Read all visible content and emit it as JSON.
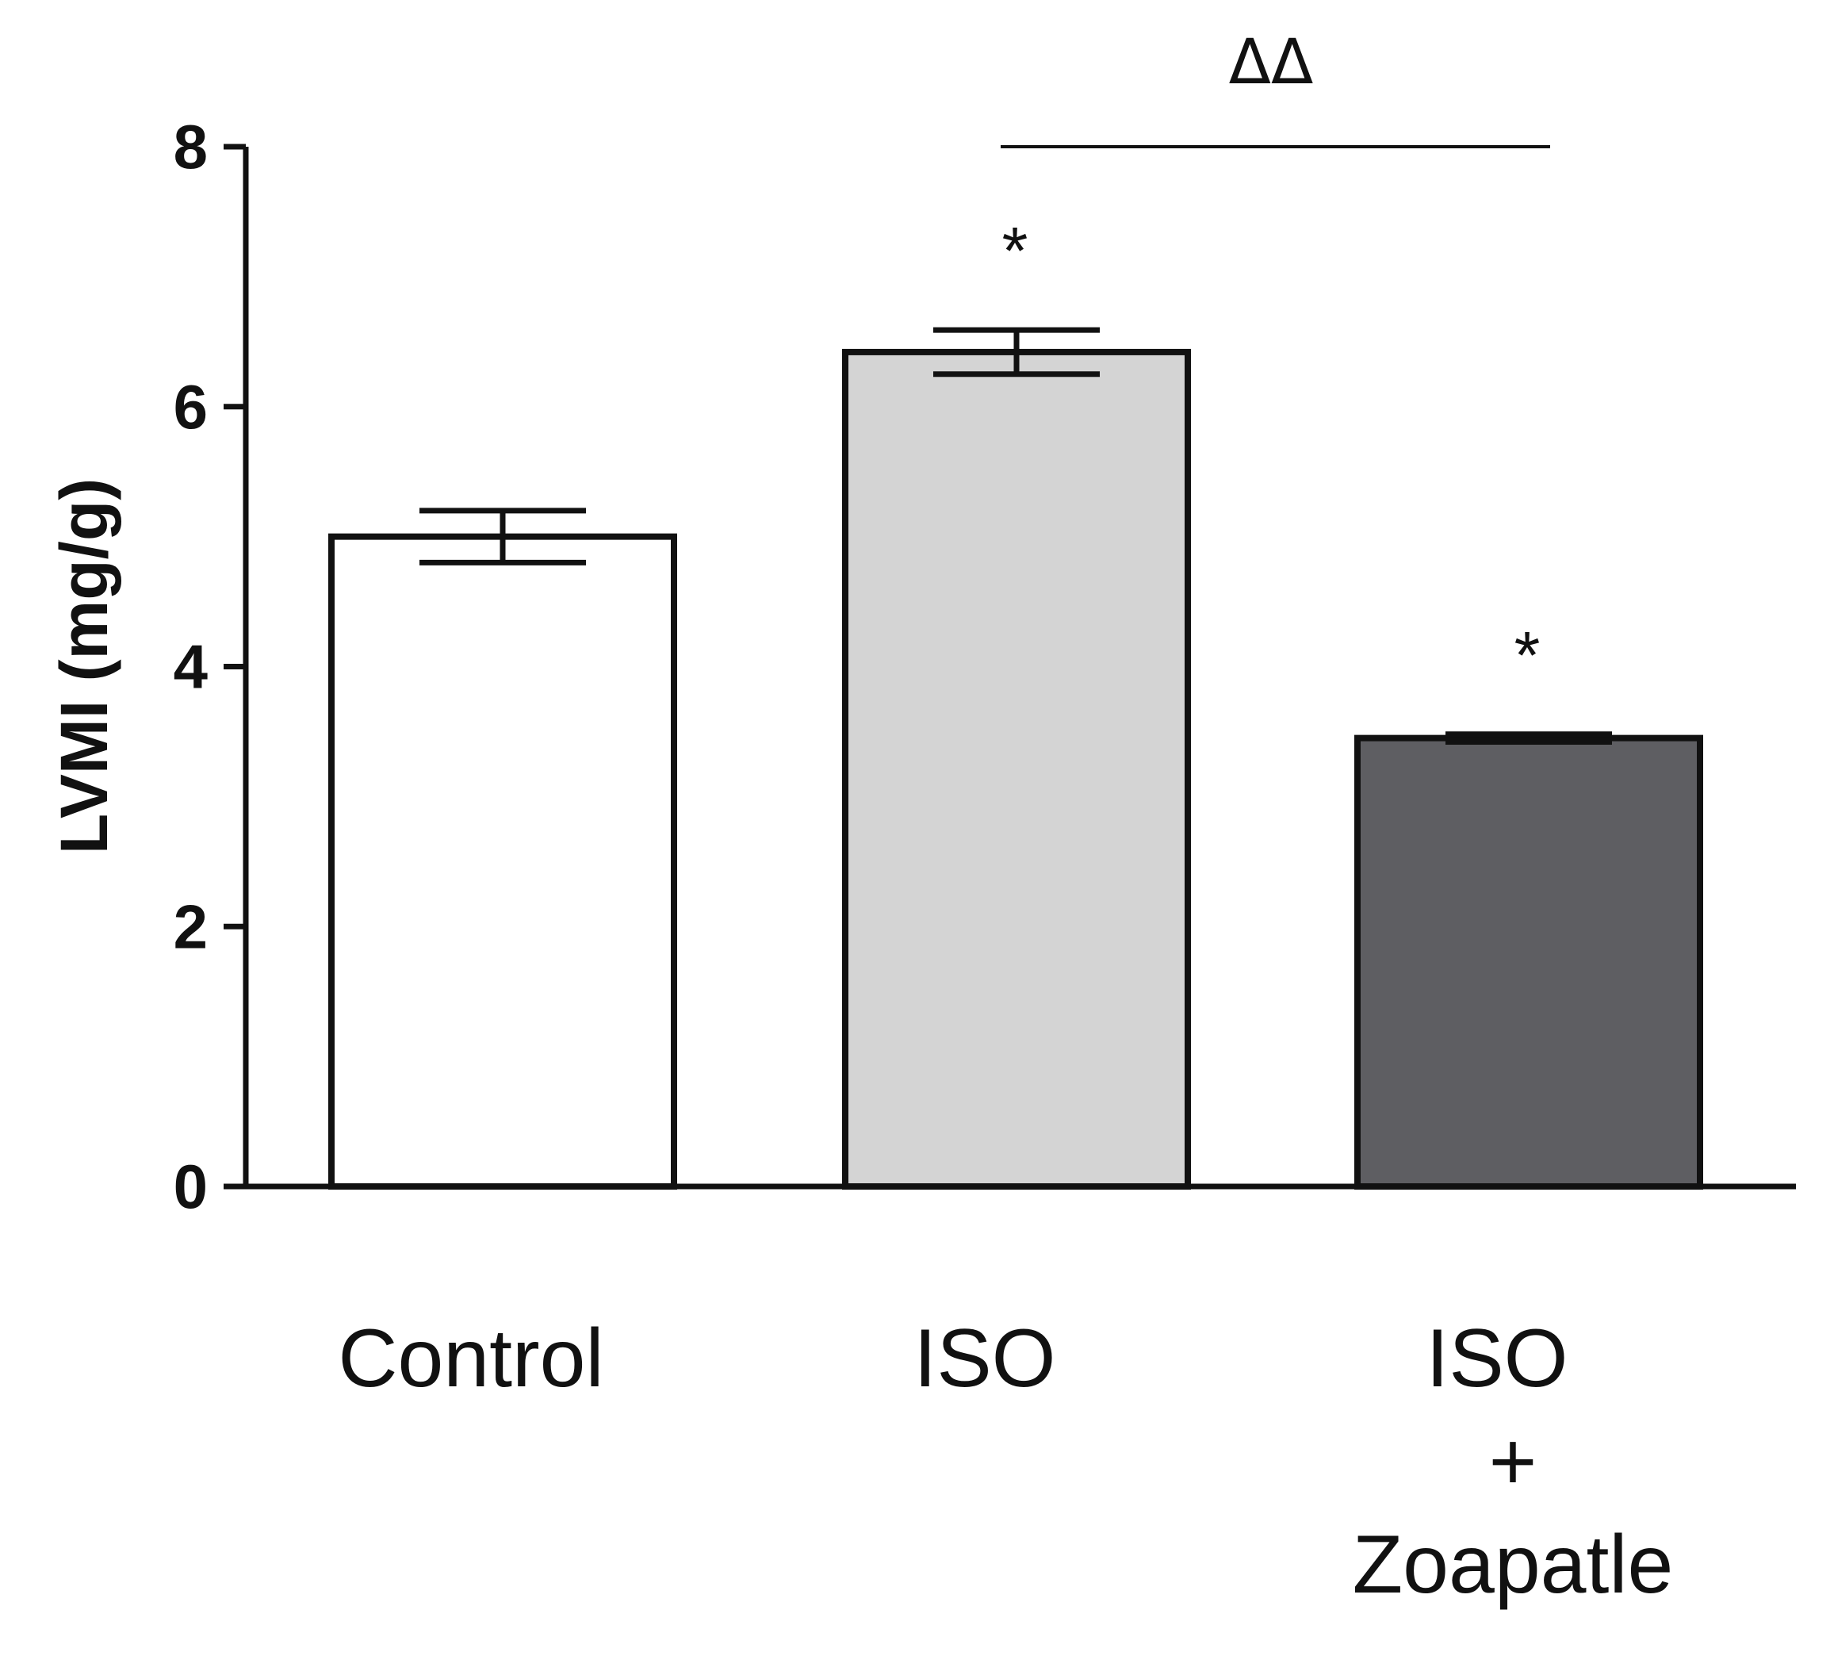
{
  "chart_data": {
    "type": "bar",
    "title": "",
    "xlabel": "",
    "ylabel": "LVMI (mg/g)",
    "ylim": [
      0,
      8
    ],
    "yticks": [
      0,
      2,
      4,
      6,
      8
    ],
    "ytick_labels": [
      "0",
      "2",
      "4",
      "6",
      "8"
    ],
    "categories": [
      "Control",
      "ISO",
      "ISO + Zoapatle"
    ],
    "category_label_lines": [
      [
        "Control"
      ],
      [
        "ISO"
      ],
      [
        "ISO",
        "+",
        "Zoapatle"
      ]
    ],
    "values": [
      5.0,
      6.42,
      3.45
    ],
    "errors": [
      0.2,
      0.17,
      0.03
    ],
    "bar_colors": [
      "#ffffff",
      "#d4d4d4",
      "#5e5e62"
    ],
    "annotations": [
      {
        "category_index": 1,
        "text": "*"
      },
      {
        "category_index": 2,
        "text": "*"
      }
    ],
    "comparison": {
      "from_index": 1,
      "to_index": 2,
      "text": "ΔΔ"
    }
  }
}
